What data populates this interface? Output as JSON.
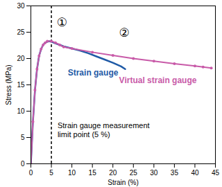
{
  "chart_data": {
    "type": "line",
    "x_label": "Strain (%)",
    "y_label": "Stress (MPa)",
    "xlim": [
      0,
      45
    ],
    "xticks": [
      0,
      5,
      10,
      15,
      20,
      25,
      30,
      35,
      40,
      45
    ],
    "ylim": [
      0,
      30
    ],
    "yticks": [
      0,
      5,
      10,
      15,
      20,
      25,
      30
    ],
    "grid": false,
    "series": [
      {
        "name": "Strain gauge",
        "color": "#1f5aa6",
        "line_style": "solid",
        "label_x": 9,
        "label_y": 17.3,
        "x": [
          0,
          0.5,
          1,
          1.5,
          2,
          2.5,
          3,
          3.5,
          4,
          4.5,
          5,
          6,
          7,
          8,
          10,
          12,
          14,
          16,
          18,
          20,
          22,
          23
        ],
        "values": [
          0,
          8,
          14,
          18,
          20.5,
          21.8,
          22.6,
          23,
          23.2,
          23.3,
          23.2,
          22.9,
          22.6,
          22.3,
          21.9,
          21.5,
          21,
          20.4,
          19.8,
          19.2,
          18.5,
          18
        ]
      },
      {
        "name": "Virtual strain gauge",
        "color": "#c85aa8",
        "marker": "dot",
        "label_x": 21.5,
        "label_y": 15.8,
        "x": [
          0,
          0.5,
          1,
          1.5,
          2,
          2.5,
          3,
          3.5,
          4,
          5,
          6,
          7,
          8,
          10,
          15,
          20,
          25,
          30,
          35,
          40,
          42,
          44
        ],
        "values": [
          0,
          8,
          14,
          18,
          20.5,
          21.8,
          22.6,
          23,
          23.3,
          23.3,
          23,
          22.6,
          22.2,
          21.9,
          21.2,
          20.6,
          20,
          19.5,
          19,
          18.6,
          18.4,
          18.2
        ]
      }
    ],
    "reference_lines": [
      {
        "x": 5,
        "line_style": "dashed",
        "color": "#000000"
      }
    ],
    "annotations": [
      {
        "text": "①",
        "x": 6.3,
        "y": 27
      },
      {
        "text": "②",
        "x": 21.5,
        "y": 25
      },
      {
        "text": "Strain gauge measurement\nlimit point (5 %)",
        "x": 6.5,
        "y": 6.5
      }
    ]
  }
}
